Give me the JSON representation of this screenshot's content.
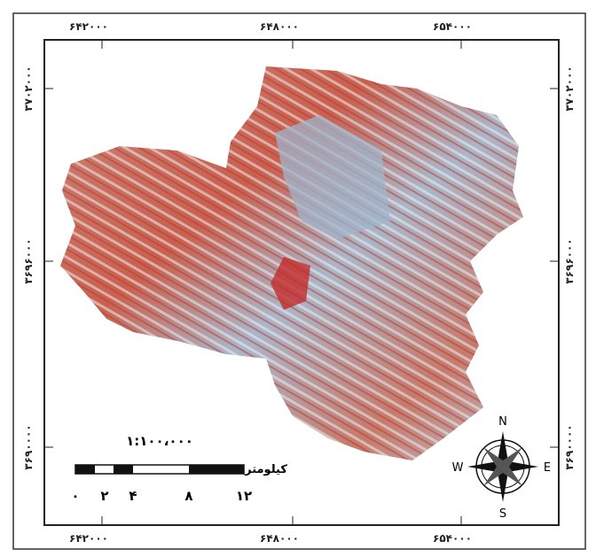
{
  "map": {
    "x_labels": [
      "۶۴۲۰۰۰",
      "۶۴۸۰۰۰",
      "۶۵۴۰۰۰"
    ],
    "y_labels": [
      "۳۷۰۲۰۰۰",
      "۳۶۹۶۰۰۰",
      "۳۶۹۰۰۰۰"
    ],
    "scale": {
      "ratio": "۱:۱۰۰،۰۰۰",
      "unit": "کیلومتر",
      "ticks": [
        "۰",
        "۲",
        "۴",
        "۸",
        "۱۲"
      ]
    },
    "compass": {
      "n": "N",
      "s": "S",
      "e": "E",
      "w": "W"
    }
  }
}
